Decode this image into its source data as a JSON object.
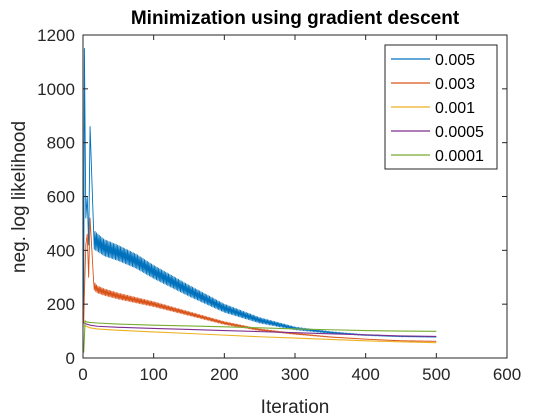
{
  "chart_data": {
    "type": "line",
    "title": "Minimization using gradient descent",
    "xlabel": "Iteration",
    "ylabel": "neg. log likelihood",
    "xlim": [
      0,
      600
    ],
    "ylim": [
      0,
      1200
    ],
    "xticks": [
      "0",
      "100",
      "200",
      "300",
      "400",
      "500",
      "600"
    ],
    "yticks": [
      "0",
      "200",
      "400",
      "600",
      "800",
      "1000",
      "1200"
    ],
    "grid": false,
    "legend_position": "top-right",
    "series": [
      {
        "name": "0.005",
        "color": "#0072BD",
        "x": [
          1,
          2,
          4,
          6,
          8,
          10,
          15,
          20,
          30,
          50,
          75,
          100,
          150,
          200,
          250,
          300,
          350,
          400,
          450,
          500
        ],
        "y": [
          180,
          1150,
          520,
          600,
          420,
          860,
          440,
          430,
          410,
          390,
          360,
          320,
          250,
          185,
          140,
          110,
          95,
          85,
          80,
          78
        ],
        "band": [
          0,
          0,
          0,
          0,
          0,
          0,
          70,
          65,
          60,
          56,
          52,
          48,
          40,
          30,
          20,
          10,
          6,
          3,
          2,
          1
        ]
      },
      {
        "name": "0.003",
        "color": "#D95319",
        "x": [
          1,
          2,
          4,
          6,
          8,
          10,
          15,
          20,
          30,
          50,
          75,
          100,
          150,
          200,
          250,
          300,
          350,
          400,
          450,
          500
        ],
        "y": [
          130,
          240,
          420,
          460,
          300,
          520,
          270,
          255,
          245,
          230,
          215,
          200,
          165,
          130,
          105,
          90,
          78,
          70,
          64,
          62
        ],
        "band": [
          0,
          0,
          0,
          0,
          0,
          0,
          30,
          26,
          24,
          22,
          20,
          18,
          14,
          10,
          6,
          4,
          2,
          1,
          1,
          1
        ]
      },
      {
        "name": "0.001",
        "color": "#EDB120",
        "x": [
          1,
          5,
          10,
          20,
          50,
          100,
          150,
          200,
          250,
          300,
          350,
          400,
          450,
          500
        ],
        "y": [
          120,
          118,
          112,
          108,
          103,
          97,
          91,
          85,
          79,
          74,
          69,
          64,
          60,
          57
        ]
      },
      {
        "name": "0.0005",
        "color": "#7E2F8E",
        "x": [
          1,
          5,
          10,
          20,
          50,
          100,
          150,
          200,
          250,
          300,
          350,
          400,
          450,
          500
        ],
        "y": [
          130,
          126,
          122,
          118,
          114,
          110,
          106,
          102,
          98,
          94,
          90,
          86,
          82,
          80
        ]
      },
      {
        "name": "0.0001",
        "color": "#77AC30",
        "x": [
          1,
          3,
          5,
          10,
          20,
          50,
          100,
          150,
          200,
          250,
          300,
          350,
          400,
          450,
          500
        ],
        "y": [
          20,
          138,
          134,
          132,
          130,
          126,
          122,
          119,
          116,
          112,
          108,
          105,
          102,
          100,
          99
        ]
      }
    ]
  }
}
